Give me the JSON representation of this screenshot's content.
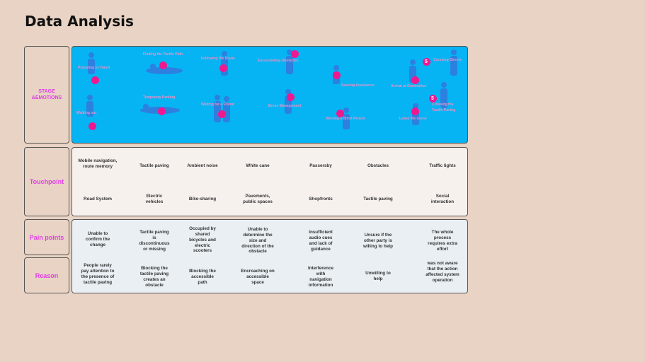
{
  "title": "Data Analysis",
  "rows": {
    "stage": "STAGE\n&EMOTIONS",
    "touchpoint": "Touchpoint",
    "pain": "Pain points",
    "reason": "Reason"
  },
  "stages_top": [
    "Preparing to Travel",
    "Finding the Tactile Path",
    "Following the Route",
    "Encountering Obstacles",
    "Seeking Assistance",
    "Arrival at Destination",
    "Crossing Streets"
  ],
  "stages_bottom": [
    "Walking out",
    "Temporary Parking",
    "Waiting for a Friend",
    "Stress Management",
    "Meeting a Blind Person",
    "Leave the scene",
    "Crossing the Tactile Paving"
  ],
  "badges": [
    "5",
    "5"
  ],
  "touchpoints_row1": [
    "Mobile navigation, route memory",
    "Tactile paving",
    "Ambient noise",
    "White cane",
    "Passersby",
    "Obstacles",
    "Traffic lights"
  ],
  "touchpoints_row2": [
    "Road System",
    "Electric vehicles",
    "Bike-sharing",
    "Pavements, public spaces",
    "Shopfronts",
    "Tactile paving",
    "Social interaction"
  ],
  "pain_points": [
    "Unable to confirm the change",
    "Tactile paving is discontinuous or missing",
    "Occupied by shared bicycles and electric scooters",
    "Unable to determine the size and direction of the obstacle",
    "Insufficient audio cues and lack of guidance",
    "Unsure if the other party is willing to help",
    "The whole process requires extra effort"
  ],
  "reasons": [
    "People rarely pay attention to the presence of tactile paving",
    "Blocking the tactile paving creates an obstacle",
    "Blocking the accessible path",
    "Encroaching on accessible space",
    "Interference with navigation information",
    "Unwilling to help",
    "was not aware that the action affected system operation"
  ],
  "colors": {
    "background": "#e8d3c4",
    "stage_panel": "#06b4f3",
    "accent": "#e23ee6",
    "dot": "#f0188f"
  },
  "icons": [
    "person-silhouette-icon",
    "emotion-dot-icon"
  ]
}
